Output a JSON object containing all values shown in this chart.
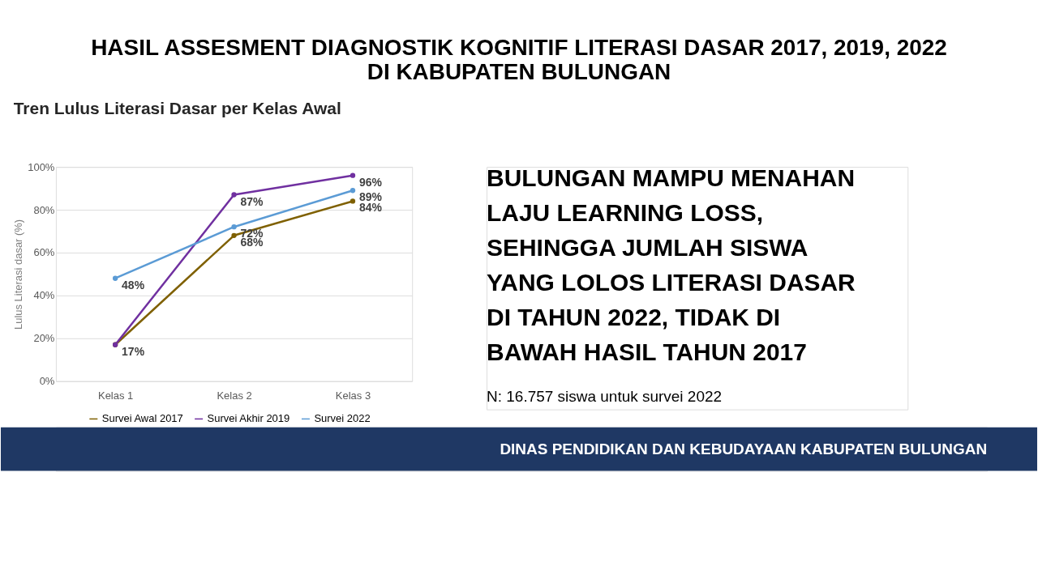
{
  "chart_data": {
    "type": "line",
    "title": [
      "HASIL ASSESMENT DIAGNOSTIK KOGNITIF LITERASI DASAR 2017, 2019, 2022",
      "DI KABUPATEN BULUNGAN"
    ],
    "subtitle": "Tren Lulus Literasi Dasar per Kelas Awal",
    "ylabel": "Lulus Literasi dasar (%)",
    "categories": [
      "Kelas 1",
      "Kelas 2",
      "Kelas 3"
    ],
    "series": [
      {
        "name": "Survei Awal 2017",
        "color": "#7f6000",
        "values": [
          17,
          68,
          84
        ],
        "value_labels": [
          "17%",
          "68%",
          "84%"
        ]
      },
      {
        "name": "Survei Akhir 2019",
        "color": "#7030a0",
        "values": [
          17,
          87,
          96
        ],
        "value_labels": [
          null,
          "87%",
          "96%"
        ]
      },
      {
        "name": "Survei 2022",
        "color": "#5b9bd5",
        "values": [
          48,
          72,
          89
        ],
        "value_labels": [
          "48%",
          "72%",
          "89%"
        ]
      }
    ],
    "ylim": [
      0,
      100
    ],
    "yticks": [
      {
        "value": 0,
        "label": "0%"
      },
      {
        "value": 20,
        "label": "20%"
      },
      {
        "value": 40,
        "label": "40%"
      },
      {
        "value": 60,
        "label": "60%"
      },
      {
        "value": 80,
        "label": "80%"
      },
      {
        "value": 100,
        "label": "100%"
      }
    ],
    "grid": "y",
    "legend": "bottom",
    "marker": "circle",
    "line_style": "solid",
    "annotations": [
      "BULUNGAN MAMPU MENAHAN LAJU LEARNING LOSS, SEHINGGA JUMLAH SISWA YANG LOLOS LITERASI DASAR DI TAHUN 2022, TIDAK DI BAWAH HASIL TAHUN 2017",
      "N: 16.757 siswa untuk survei 2022",
      "DINAS PENDIDIKAN DAN KEBUDAYAAN KABUPATEN BULUNGAN"
    ]
  }
}
